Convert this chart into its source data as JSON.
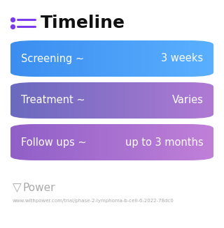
{
  "title": "Timeline",
  "title_icon_color": "#7c3aed",
  "title_fontsize": 18,
  "title_fontweight": "bold",
  "background_color": "#ffffff",
  "rows": [
    {
      "left_label": "Screening ~",
      "right_label": "3 weeks",
      "color_left": "#3b8ef0",
      "color_right": "#5ab0ff"
    },
    {
      "left_label": "Treatment ~",
      "right_label": "Varies",
      "color_left": "#6a6abf",
      "color_right": "#b07ad4"
    },
    {
      "left_label": "Follow ups ~",
      "right_label": "up to 3 months",
      "color_left": "#9060c8",
      "color_right": "#c080d8"
    }
  ],
  "footer_logo_text": "Power",
  "footer_url": "www.withpower.com/trial/phase-2-lymphoma-b-cell-6-2022-78dc0",
  "footer_color": "#aaaaaa",
  "label_fontsize": 10.5
}
